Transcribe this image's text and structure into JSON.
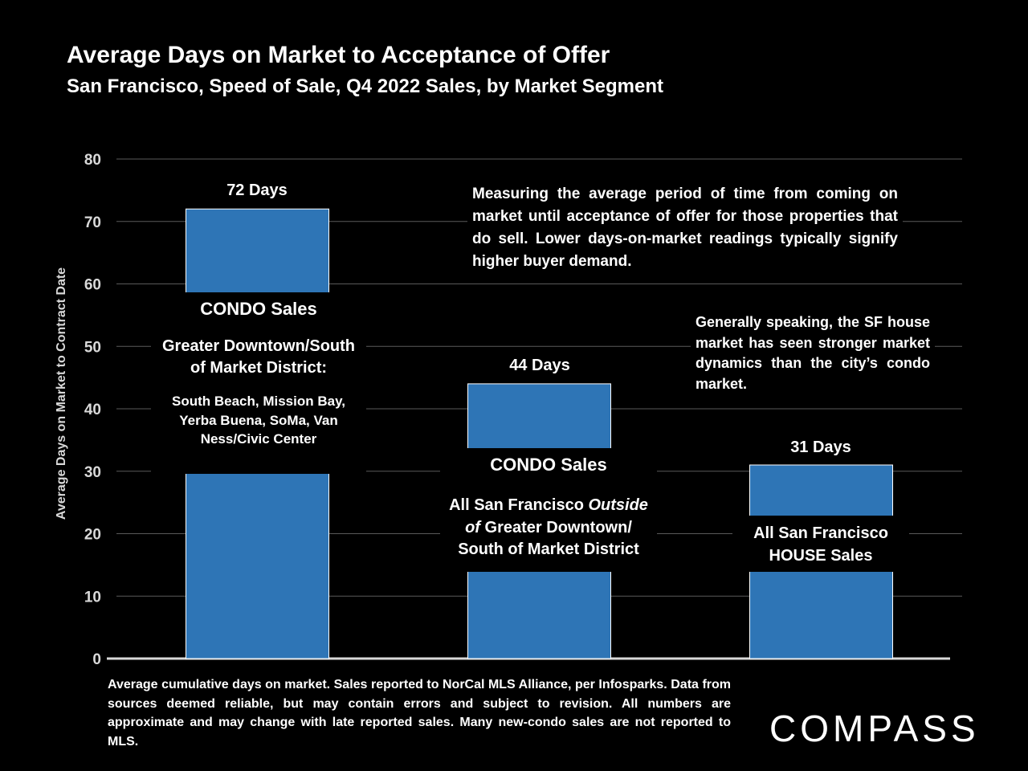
{
  "header": {
    "title": "Average Days on Market to Acceptance of Offer",
    "subtitle": "San Francisco, Speed of Sale, Q4 2022 Sales, by Market Segment"
  },
  "chart_data": {
    "type": "bar",
    "title": "Average Days on Market to Acceptance of Offer",
    "subtitle": "San Francisco, Speed of Sale, Q4 2022 Sales, by Market Segment",
    "ylabel": "Average Days on Market to Contract Date",
    "xlabel": "",
    "ylim": [
      0,
      80
    ],
    "yticks": [
      "0",
      "10",
      "20",
      "30",
      "40",
      "50",
      "60",
      "70",
      "80"
    ],
    "grid": true,
    "bar_color": "#2E75B6",
    "values": [
      72,
      44,
      31
    ],
    "data_labels": [
      "72 Days",
      "44 Days",
      "31 Days"
    ],
    "categories": [
      "CONDO Sales, Greater Downtown/South of Market District",
      "CONDO Sales, All San Francisco Outside of Greater Downtown/South of Market District",
      "All San Francisco HOUSE Sales"
    ]
  },
  "bar_labels": [
    {
      "heading": "CONDO Sales",
      "line1": "Greater Downtown/South",
      "line2": "of Market District:",
      "detail1": "South Beach, Mission Bay,",
      "detail2": "Yerba Buena, SoMa, Van",
      "detail3": "Ness/Civic Center"
    },
    {
      "heading": "CONDO Sales",
      "line1a": "All San Francisco ",
      "line1b": "Outside",
      "line2a": "of",
      "line2b": " Greater Downtown/",
      "line3": "South of Market District"
    },
    {
      "line1": "All San Francisco",
      "line2": "HOUSE Sales"
    }
  ],
  "notes": {
    "measuring": "Measuring the average period of time from coming on market until acceptance of offer for those properties that do sell. Lower days-on-market readings typically signify higher buyer demand.",
    "general": "Generally speaking, the SF house market has seen stronger market dynamics than the city’s condo market."
  },
  "footnote": "Average cumulative days on market. Sales reported to NorCal MLS Alliance, per Infosparks. Data from sources deemed reliable, but may contain errors and subject to revision. All numbers are approximate and may change with late reported sales. Many new-condo sales are not reported to MLS.",
  "logo": "COMPASS"
}
